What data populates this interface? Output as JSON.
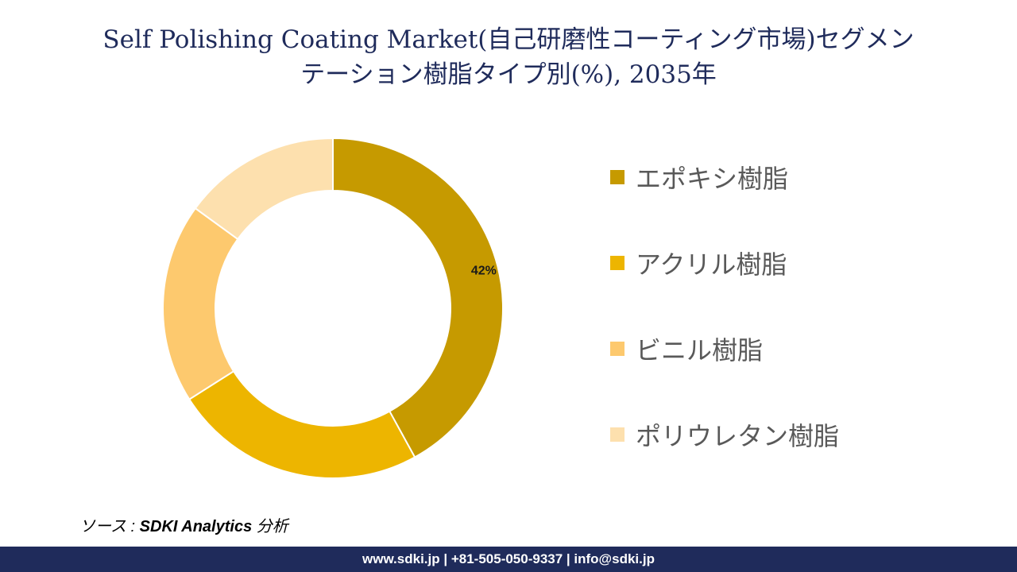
{
  "chart_data": {
    "type": "pie",
    "title_line1": "Self Polishing Coating Market(自己研磨性コーティング市場)セグメン",
    "title_line2": "テーション樹脂タイプ別(%), 2035年",
    "categories": [
      "エポキシ樹脂",
      "アクリル樹脂",
      "ビニル樹脂",
      "ポリウレタン樹脂"
    ],
    "values": [
      42,
      24,
      19,
      15
    ],
    "data_labels": [
      "42%",
      "",
      "",
      ""
    ],
    "colors": [
      "#c69a00",
      "#edb500",
      "#fdc96e",
      "#fde0ae"
    ],
    "legend_position": "right",
    "donut": true
  },
  "source": {
    "prefix": "ソース : ",
    "name": "SDKI Analytics",
    "suffix": " 分析"
  },
  "footer": {
    "contact": "www.sdki.jp | +81-505-050-9337 | info@sdki.jp"
  }
}
